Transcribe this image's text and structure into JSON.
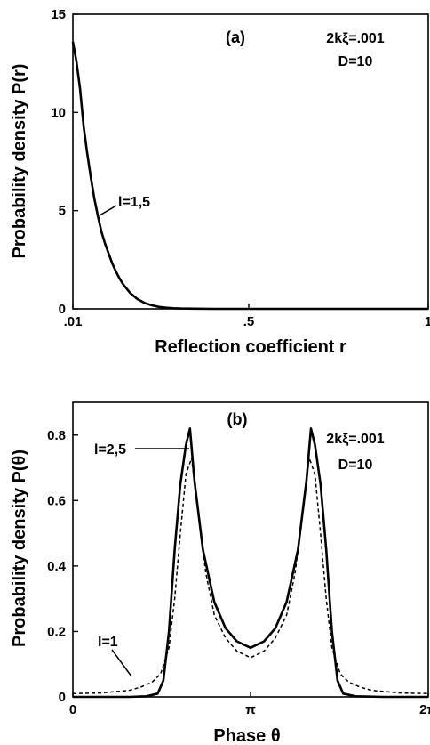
{
  "chart_data": [
    {
      "type": "line",
      "panel_label": "(a)",
      "xlabel": "Reflection coefficient  r",
      "ylabel": "Probability density  P(r)",
      "xlim": [
        0.01,
        1
      ],
      "ylim": [
        0,
        15
      ],
      "x_ticks": [
        {
          "value": 0.01,
          "label": ".01"
        },
        {
          "value": 0.5,
          "label": ".5"
        },
        {
          "value": 1,
          "label": "1"
        }
      ],
      "y_ticks": [
        {
          "value": 0,
          "label": "0"
        },
        {
          "value": 5,
          "label": "5"
        },
        {
          "value": 10,
          "label": "10"
        },
        {
          "value": 15,
          "label": "15"
        }
      ],
      "annotations": [
        "2kξ=.001",
        "D=10"
      ],
      "series": [
        {
          "name": "l=1,5",
          "style": "solid",
          "x": [
            0.01,
            0.02,
            0.03,
            0.04,
            0.05,
            0.06,
            0.07,
            0.08,
            0.09,
            0.1,
            0.11,
            0.12,
            0.13,
            0.14,
            0.15,
            0.17,
            0.19,
            0.21,
            0.23,
            0.25,
            0.27,
            0.29,
            0.31,
            0.35,
            0.4,
            0.5,
            0.6,
            0.7,
            0.8,
            0.9,
            1.0
          ],
          "y": [
            13.6,
            12.6,
            11.2,
            9.3,
            7.9,
            6.7,
            5.6,
            4.7,
            3.9,
            3.3,
            2.8,
            2.3,
            1.9,
            1.55,
            1.25,
            0.8,
            0.5,
            0.3,
            0.18,
            0.1,
            0.06,
            0.03,
            0.02,
            0.01,
            0.0,
            0.0,
            0.0,
            0.0,
            0.0,
            0.0,
            0.0
          ]
        }
      ]
    },
    {
      "type": "line",
      "panel_label": "(b)",
      "xlabel": "Phase θ",
      "ylabel": "Probability density  P(θ)",
      "xlim": [
        0,
        6.2832
      ],
      "ylim": [
        0,
        0.9
      ],
      "x_ticks": [
        {
          "value": 0,
          "label": "0"
        },
        {
          "value": 3.1416,
          "label": "π"
        },
        {
          "value": 6.2832,
          "label": "2π"
        }
      ],
      "y_ticks": [
        {
          "value": 0,
          "label": "0"
        },
        {
          "value": 0.2,
          "label": "0.2"
        },
        {
          "value": 0.4,
          "label": "0.4"
        },
        {
          "value": 0.6,
          "label": "0.6"
        },
        {
          "value": 0.8,
          "label": "0.8"
        }
      ],
      "annotations": [
        "2kξ=.001",
        "D=10"
      ],
      "series": [
        {
          "name": "l=2,5",
          "style": "solid",
          "x": [
            0,
            0.5,
            1.0,
            1.3,
            1.5,
            1.6,
            1.7,
            1.8,
            1.9,
            2.0,
            2.07,
            2.15,
            2.3,
            2.5,
            2.7,
            2.9,
            3.1416,
            3.38,
            3.58,
            3.78,
            3.98,
            4.13,
            4.21,
            4.28,
            4.38,
            4.48,
            4.58,
            4.68,
            4.78,
            5.0,
            5.5,
            6.2832
          ],
          "y": [
            0.0,
            0.0,
            0.0,
            0.002,
            0.01,
            0.05,
            0.2,
            0.45,
            0.65,
            0.77,
            0.82,
            0.66,
            0.45,
            0.29,
            0.21,
            0.17,
            0.15,
            0.17,
            0.21,
            0.29,
            0.45,
            0.66,
            0.82,
            0.77,
            0.65,
            0.45,
            0.2,
            0.05,
            0.01,
            0.002,
            0.0,
            0.0
          ]
        },
        {
          "name": "l=1",
          "style": "dashed",
          "x": [
            0,
            0.5,
            1.0,
            1.2,
            1.4,
            1.55,
            1.7,
            1.8,
            1.9,
            2.0,
            2.1,
            2.2,
            2.35,
            2.5,
            2.7,
            2.9,
            3.1416,
            3.38,
            3.58,
            3.78,
            3.93,
            4.08,
            4.18,
            4.28,
            4.38,
            4.48,
            4.58,
            4.73,
            4.88,
            5.08,
            5.28,
            5.78,
            6.2832
          ],
          "y": [
            0.01,
            0.012,
            0.02,
            0.03,
            0.045,
            0.07,
            0.15,
            0.3,
            0.5,
            0.68,
            0.73,
            0.58,
            0.38,
            0.25,
            0.18,
            0.14,
            0.12,
            0.14,
            0.18,
            0.25,
            0.38,
            0.58,
            0.73,
            0.68,
            0.5,
            0.3,
            0.15,
            0.07,
            0.045,
            0.03,
            0.02,
            0.012,
            0.01
          ]
        }
      ]
    }
  ]
}
